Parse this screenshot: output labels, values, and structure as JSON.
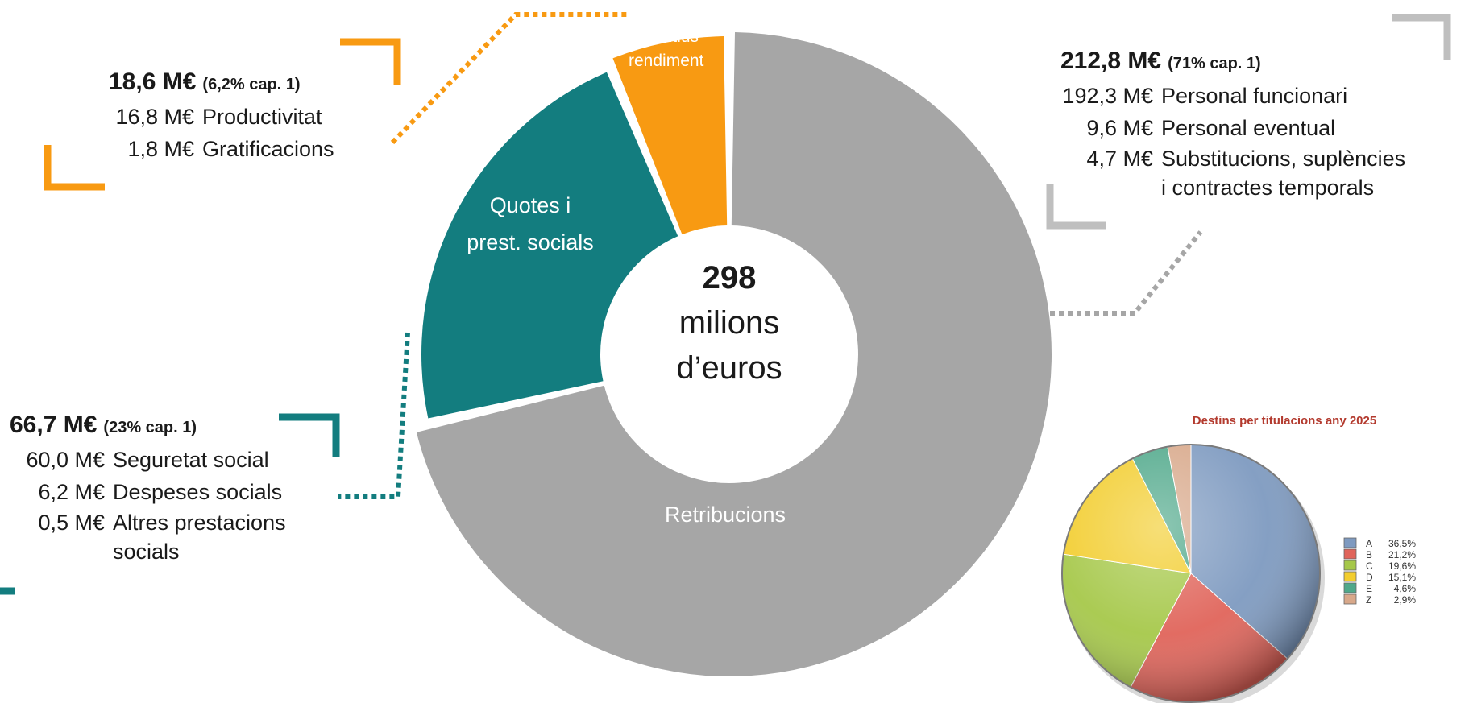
{
  "chart_data": [
    {
      "type": "pie",
      "variant": "donut",
      "total_value": "298",
      "total_unit": "milions",
      "total_unit2": "d’euros",
      "slices": [
        {
          "label": "Retribucions",
          "value": 212.8,
          "color": "#a6a6a6"
        },
        {
          "label": "Quotes i",
          "label2": "prest. socials",
          "value": 66.7,
          "color": "#137d7f"
        },
        {
          "label": "Incentius",
          "label2": "rendiment",
          "value": 18.6,
          "color": "#f89a12"
        }
      ]
    },
    {
      "type": "pie",
      "title": "Destins per titulacions any 2025",
      "legend_position": "right",
      "slices": [
        {
          "label": "A",
          "value": 36.5,
          "display": "36,5%",
          "color": "#7e9ac0"
        },
        {
          "label": "B",
          "value": 21.2,
          "display": "21,2%",
          "color": "#e0645a"
        },
        {
          "label": "C",
          "value": 19.6,
          "display": "19,6%",
          "color": "#a6c84a"
        },
        {
          "label": "D",
          "value": 15.1,
          "display": "15,1%",
          "color": "#f2cd2e"
        },
        {
          "label": "E",
          "value": 4.6,
          "display": "4,6%",
          "color": "#4fa88a"
        },
        {
          "label": "Z",
          "value": 2.9,
          "display": "2,9%",
          "color": "#d8a88a"
        }
      ]
    }
  ],
  "panels": {
    "incentius": {
      "total": "18,6 M€",
      "share": "(6,2% cap. 1)",
      "color": "#f89a12",
      "rows": [
        {
          "amount": "16,8 M€",
          "label": "Productivitat"
        },
        {
          "amount": "1,8 M€",
          "label": "Gratificacions"
        }
      ]
    },
    "retribucions": {
      "total": "212,8 M€",
      "share": "(71% cap. 1)",
      "color": "#bfbfbf",
      "rows": [
        {
          "amount": "192,3 M€",
          "label": "Personal funcionari"
        },
        {
          "amount": "9,6 M€",
          "label": "Personal eventual"
        },
        {
          "amount": "4,7 M€",
          "label": "Substitucions, suplències",
          "label2": "i contractes temporals"
        }
      ]
    },
    "quotes": {
      "total": "66,7 M€",
      "share": "(23% cap. 1)",
      "color": "#137d7f",
      "rows": [
        {
          "amount": "60,0 M€",
          "label": "Seguretat  social"
        },
        {
          "amount": "6,2 M€",
          "label": "Despeses socials"
        },
        {
          "amount": "0,5 M€",
          "label": "Altres prestacions",
          "label2": "socials"
        }
      ]
    }
  }
}
